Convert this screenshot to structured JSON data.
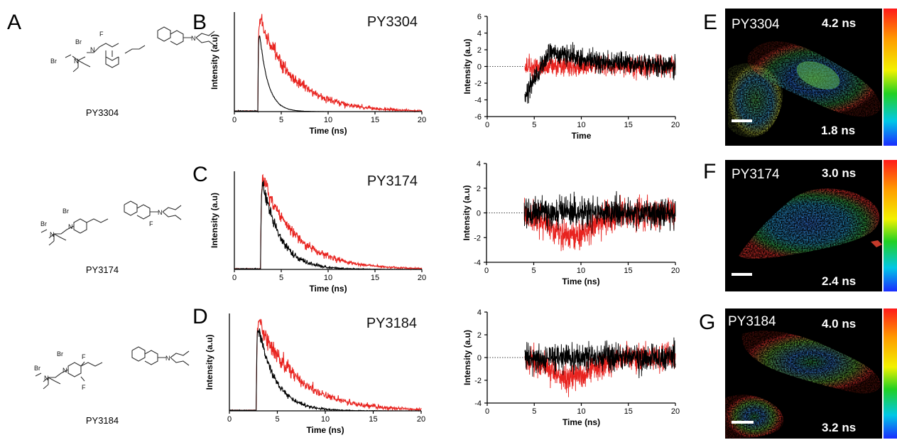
{
  "panel_letters": {
    "a": "A",
    "b": "B",
    "c": "C",
    "d": "D",
    "e": "E",
    "f": "F",
    "g": "G"
  },
  "compounds": [
    {
      "name": "PY3304",
      "atoms": [
        "Br",
        "Br",
        "F",
        "N",
        "N",
        "N"
      ]
    },
    {
      "name": "PY3174",
      "atoms": [
        "Br",
        "Br",
        "N",
        "N",
        "N",
        "F"
      ]
    },
    {
      "name": "PY3184",
      "atoms": [
        "Br",
        "Br",
        "F",
        "F",
        "N",
        "N",
        "N"
      ]
    }
  ],
  "colors": {
    "probe": "#e8231f",
    "irf": "#000000"
  },
  "chart_data": [
    {
      "type": "line",
      "panel": "B",
      "title": "PY3304",
      "xlabel": "Time (ns)",
      "ylabel": "Intensity (a.u)",
      "xlim": [
        0,
        20
      ],
      "xticks": [
        "0",
        "5",
        "10",
        "15",
        "20"
      ],
      "series": [
        {
          "color": "#e8231f",
          "kind": "decay",
          "onset": 2.5,
          "tau": 3.6,
          "noise": 0.08
        },
        {
          "color": "#000000",
          "kind": "decay",
          "onset": 2.5,
          "tau": 0.9,
          "noise": 0.01
        }
      ]
    },
    {
      "type": "line",
      "panel": "B-residual",
      "xlabel": "Time",
      "ylabel": "Intensity (a.u)",
      "xlim": [
        0,
        20
      ],
      "ylim": [
        -6,
        6
      ],
      "xticks": [
        "0",
        "5",
        "10",
        "15",
        "20"
      ],
      "yticks": [
        "-6",
        "-4",
        "-2",
        "0",
        "2",
        "4",
        "6"
      ],
      "series": [
        {
          "color": "#e8231f",
          "kind": "residual",
          "start": 4,
          "amp": 1.0
        },
        {
          "color": "#000000",
          "kind": "residual",
          "start": 4,
          "amp": 1.1
        }
      ]
    },
    {
      "type": "line",
      "panel": "C",
      "title": "PY3174",
      "xlabel": "Time (ns)",
      "ylabel": "Intensity (a.u)",
      "xlim": [
        0,
        20
      ],
      "xticks": [
        "0",
        "5",
        "10",
        "15",
        "20"
      ],
      "series": [
        {
          "color": "#e8231f",
          "kind": "decay",
          "onset": 2.8,
          "tau": 3.6,
          "noise": 0.06
        },
        {
          "color": "#000000",
          "kind": "decay",
          "onset": 2.8,
          "tau": 1.9,
          "noise": 0.06
        }
      ]
    },
    {
      "type": "line",
      "panel": "C-residual",
      "xlabel": "Time (ns)",
      "ylabel": "Intensity (a.u)",
      "xlim": [
        0,
        20
      ],
      "ylim": [
        -4,
        4
      ],
      "xticks": [
        "0",
        "5",
        "10",
        "15",
        "20"
      ],
      "yticks": [
        "-4",
        "-2",
        "0",
        "2",
        "4"
      ],
      "series": [
        {
          "color": "#e8231f",
          "kind": "residual",
          "start": 4,
          "amp": 1.0
        },
        {
          "color": "#000000",
          "kind": "residual",
          "start": 4,
          "amp": 1.0
        }
      ]
    },
    {
      "type": "line",
      "panel": "D",
      "title": "PY3184",
      "xlabel": "Time (ns)",
      "ylabel": "Intensity (a.u)",
      "xlim": [
        0,
        20
      ],
      "xticks": [
        "0",
        "5",
        "10",
        "15",
        "20"
      ],
      "series": [
        {
          "color": "#e8231f",
          "kind": "decay",
          "onset": 2.8,
          "tau": 4.0,
          "noise": 0.08
        },
        {
          "color": "#000000",
          "kind": "decay",
          "onset": 2.8,
          "tau": 1.8,
          "noise": 0.05
        }
      ]
    },
    {
      "type": "line",
      "panel": "D-residual",
      "xlabel": "Time (ns)",
      "ylabel": "Intensity (a.u)",
      "xlim": [
        0,
        20
      ],
      "ylim": [
        -4,
        4
      ],
      "xticks": [
        "0",
        "5",
        "10",
        "15",
        "20"
      ],
      "yticks": [
        "-4",
        "-2",
        "0",
        "2",
        "4"
      ],
      "series": [
        {
          "color": "#e8231f",
          "kind": "residual",
          "start": 4,
          "amp": 1.0
        },
        {
          "color": "#000000",
          "kind": "residual",
          "start": 4,
          "amp": 1.0
        }
      ]
    }
  ],
  "flim_images": [
    {
      "panel": "E",
      "name": "PY3304",
      "max": "4.2 ns",
      "min": "1.8 ns"
    },
    {
      "panel": "F",
      "name": "PY3174",
      "max": "3.0 ns",
      "min": "2.4 ns"
    },
    {
      "panel": "G",
      "name": "PY3184",
      "max": "4.0 ns",
      "min": "3.2 ns"
    }
  ]
}
